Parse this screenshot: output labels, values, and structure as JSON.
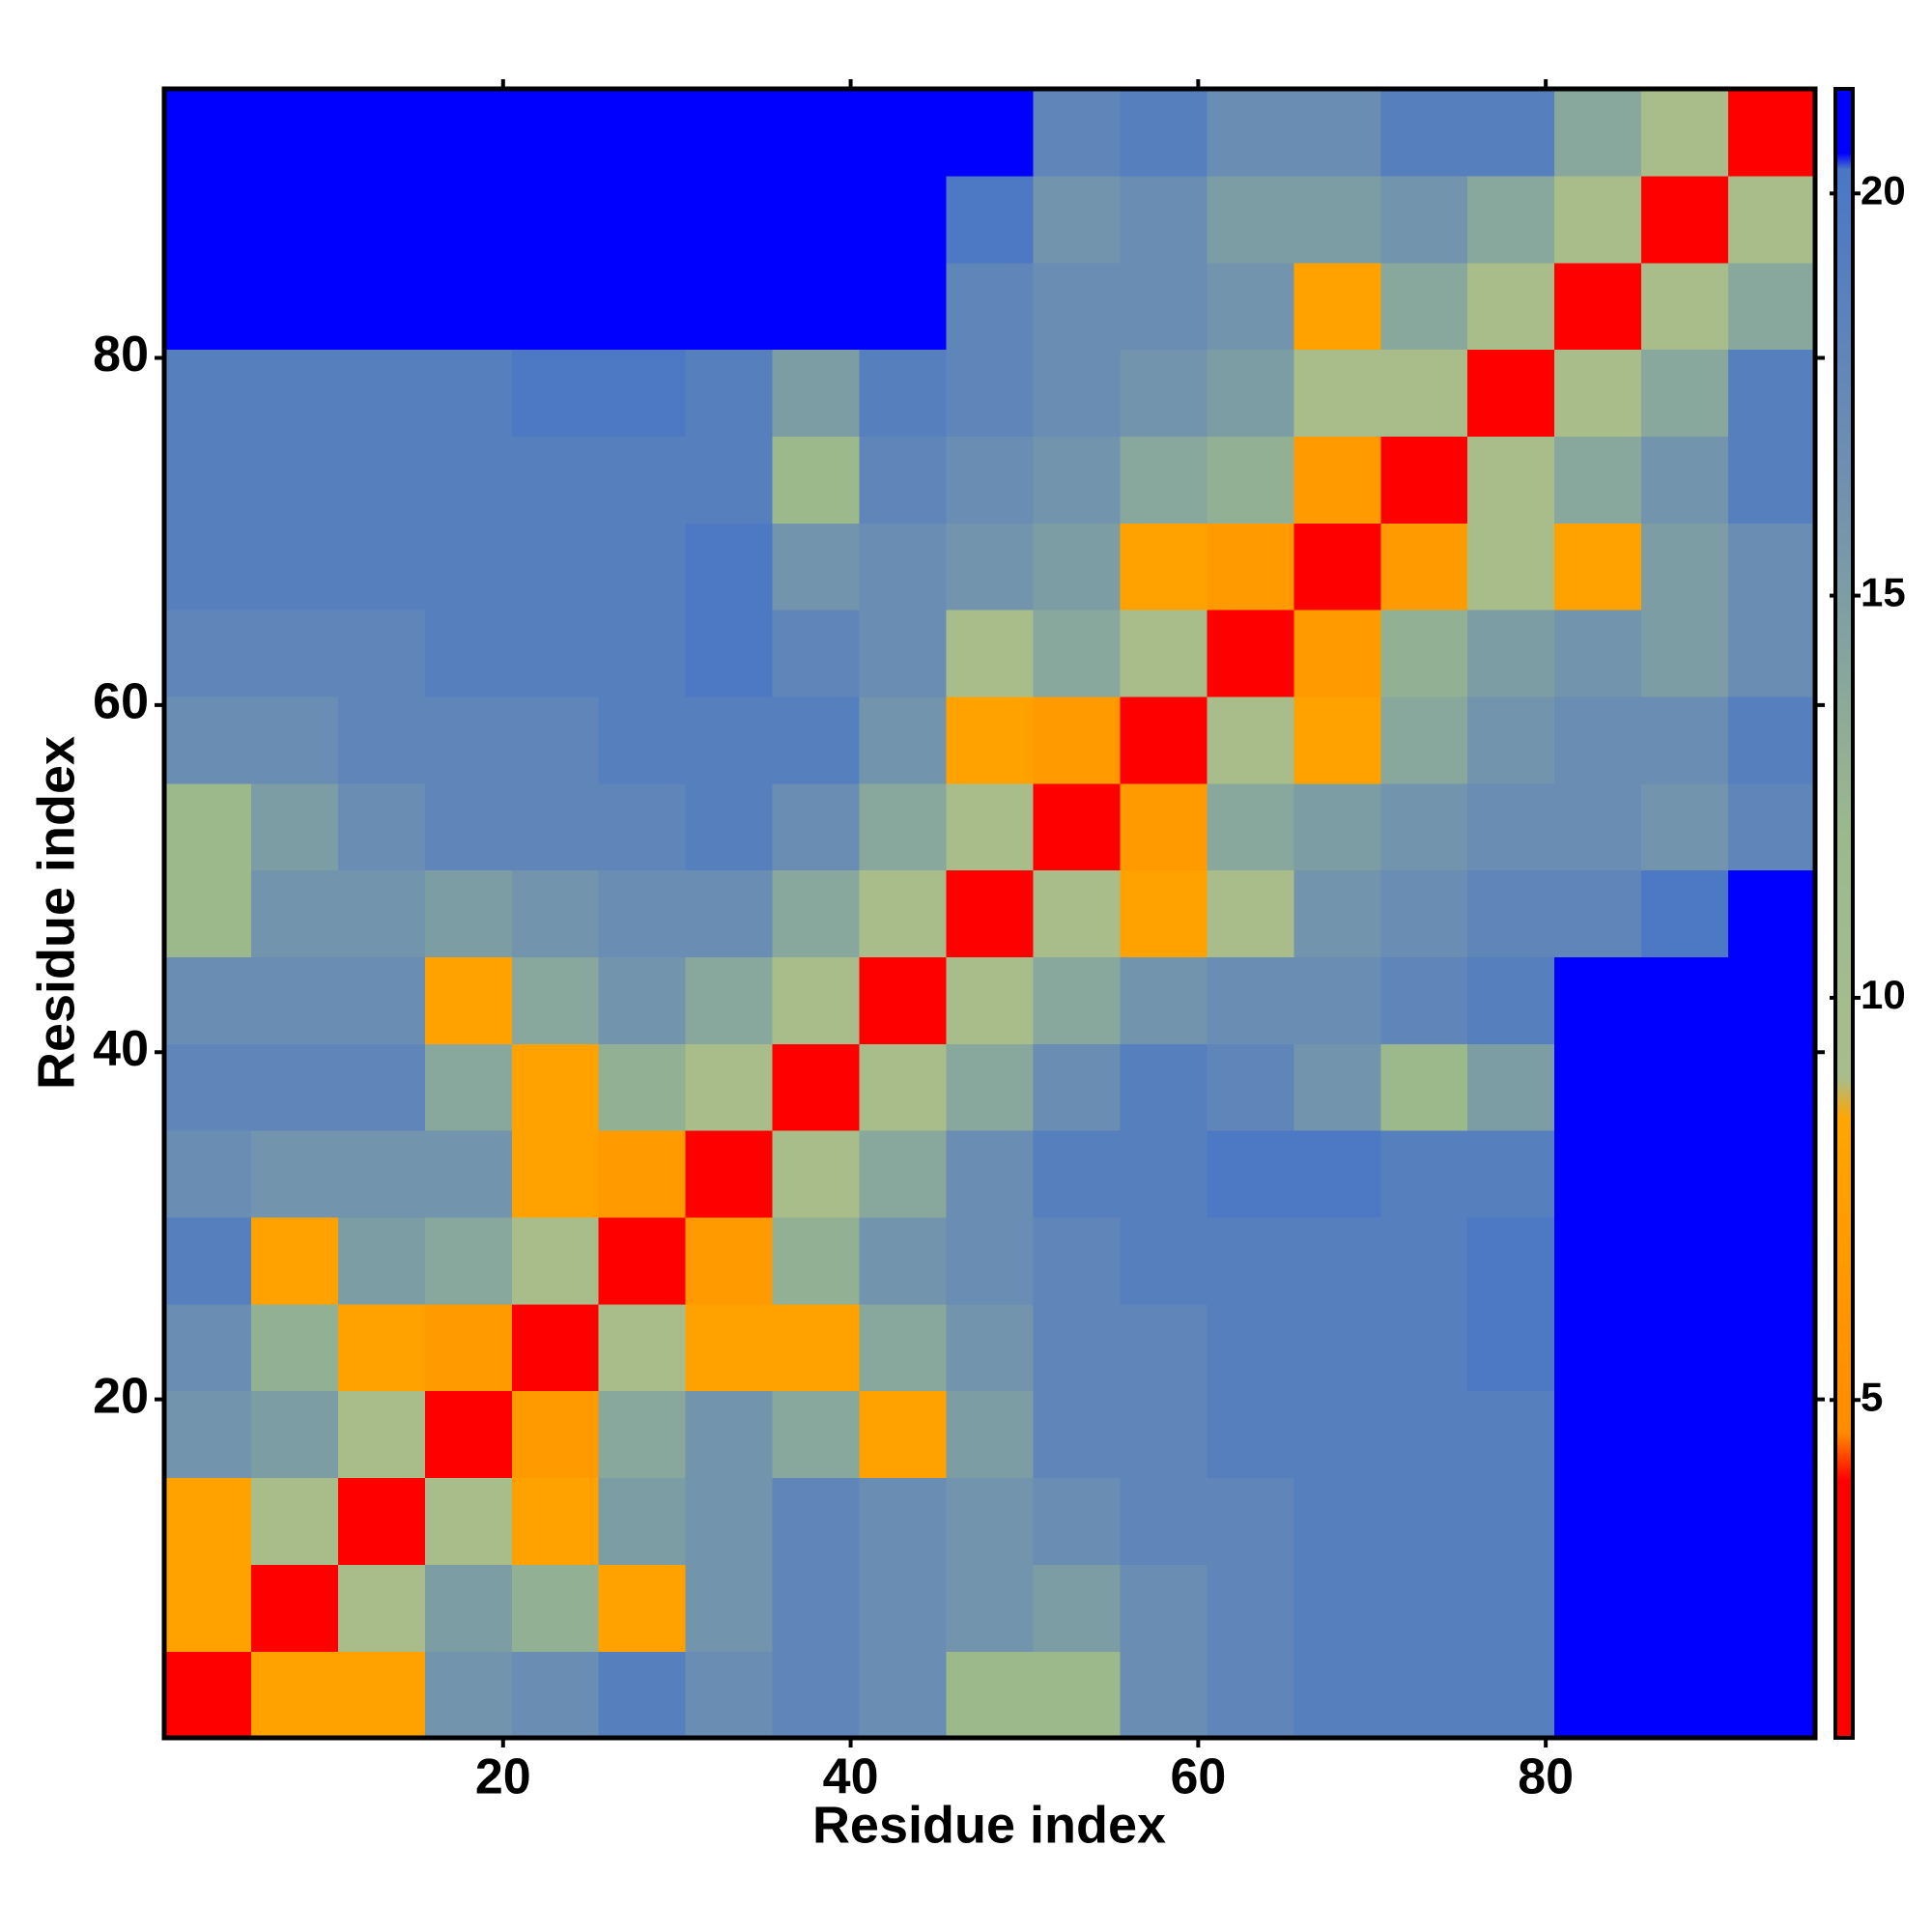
{
  "chart_data": {
    "type": "heatmap",
    "x_label": "Residue index",
    "y_label": "Residue index",
    "x": [
      3,
      8,
      13,
      18,
      23,
      28,
      33,
      38,
      43,
      48,
      53,
      58,
      63,
      68,
      73,
      78,
      83,
      88,
      93
    ],
    "y": [
      3,
      8,
      13,
      18,
      23,
      28,
      33,
      38,
      43,
      48,
      53,
      58,
      63,
      68,
      73,
      78,
      83,
      88,
      93
    ],
    "z": [
      [
        3,
        8,
        8,
        16,
        17,
        19,
        17,
        18,
        17,
        12,
        12,
        17,
        18,
        19,
        19,
        19,
        21,
        21,
        21
      ],
      [
        8,
        3,
        9,
        15,
        13,
        8,
        16,
        18,
        17,
        16,
        15,
        17,
        18,
        19,
        19,
        19,
        21,
        21,
        21
      ],
      [
        8,
        9,
        3,
        9,
        8,
        15,
        16,
        18,
        17,
        16,
        17,
        18,
        18,
        19,
        19,
        19,
        21,
        21,
        21
      ],
      [
        16,
        15,
        9,
        3,
        7,
        14,
        16,
        14,
        8,
        15,
        18,
        18,
        19,
        19,
        19,
        19,
        21,
        21,
        21
      ],
      [
        17,
        13,
        8,
        7,
        3,
        9,
        8,
        8,
        14,
        16,
        18,
        18,
        19,
        19,
        19,
        20,
        21,
        21,
        21
      ],
      [
        19,
        8,
        15,
        14,
        9,
        3,
        7,
        13,
        16,
        17,
        18,
        19,
        19,
        19,
        19,
        20,
        21,
        21,
        21
      ],
      [
        17,
        16,
        16,
        16,
        8,
        7,
        3,
        9,
        14,
        17,
        19,
        19,
        20,
        20,
        19,
        19,
        21,
        21,
        21
      ],
      [
        18,
        18,
        18,
        14,
        8,
        13,
        9,
        3,
        9,
        14,
        17,
        19,
        18,
        16,
        12,
        15,
        21,
        21,
        21
      ],
      [
        17,
        17,
        17,
        8,
        14,
        16,
        14,
        9,
        3,
        9,
        14,
        16,
        17,
        17,
        18,
        19,
        21,
        21,
        21
      ],
      [
        12,
        16,
        16,
        15,
        16,
        17,
        17,
        14,
        9,
        3,
        9,
        8,
        9,
        16,
        17,
        18,
        18,
        20,
        21
      ],
      [
        12,
        15,
        17,
        18,
        18,
        18,
        19,
        17,
        14,
        9,
        3,
        7,
        14,
        15,
        16,
        17,
        17,
        16,
        18
      ],
      [
        17,
        17,
        18,
        18,
        18,
        19,
        19,
        19,
        16,
        8,
        7,
        3,
        9,
        8,
        14,
        16,
        17,
        17,
        19
      ],
      [
        18,
        18,
        18,
        19,
        19,
        19,
        20,
        18,
        17,
        9,
        14,
        9,
        3,
        7,
        13,
        15,
        16,
        15,
        17
      ],
      [
        19,
        19,
        19,
        19,
        19,
        19,
        20,
        16,
        17,
        16,
        15,
        8,
        7,
        3,
        7,
        9,
        8,
        15,
        17
      ],
      [
        19,
        19,
        19,
        19,
        19,
        19,
        19,
        12,
        18,
        17,
        16,
        14,
        13,
        7,
        3,
        9,
        14,
        16,
        19
      ],
      [
        19,
        19,
        19,
        19,
        20,
        20,
        19,
        15,
        19,
        18,
        17,
        16,
        15,
        9,
        9,
        3,
        9,
        14,
        19
      ],
      [
        21,
        21,
        21,
        21,
        21,
        21,
        21,
        21,
        21,
        18,
        17,
        17,
        16,
        8,
        14,
        9,
        3,
        9,
        14
      ],
      [
        21,
        21,
        21,
        21,
        21,
        21,
        21,
        21,
        21,
        20,
        16,
        17,
        15,
        15,
        16,
        14,
        9,
        3,
        9
      ],
      [
        21,
        21,
        21,
        21,
        21,
        21,
        21,
        21,
        21,
        21,
        18,
        19,
        17,
        17,
        19,
        19,
        14,
        9,
        3
      ]
    ],
    "xlim": [
      0.5,
      95.5
    ],
    "ylim": [
      0.5,
      95.5
    ],
    "xticks": [
      20,
      40,
      60,
      80
    ],
    "yticks": [
      20,
      40,
      60,
      80
    ],
    "zlim": [
      0.8,
      21.3
    ],
    "zticks": [
      5,
      10,
      15,
      20
    ],
    "colorscale": [
      [
        0.8,
        "#ff0000"
      ],
      [
        4,
        "#ff0000"
      ],
      [
        4.6,
        "#ff8c00"
      ],
      [
        8.5,
        "#ffa500"
      ],
      [
        9,
        "#a9bd8b"
      ],
      [
        12,
        "#9cb98c"
      ],
      [
        16,
        "#7394ad"
      ],
      [
        20.3,
        "#4a76c6"
      ],
      [
        20.5,
        "#0000ff"
      ],
      [
        21.3,
        "#0000ff"
      ]
    ]
  }
}
